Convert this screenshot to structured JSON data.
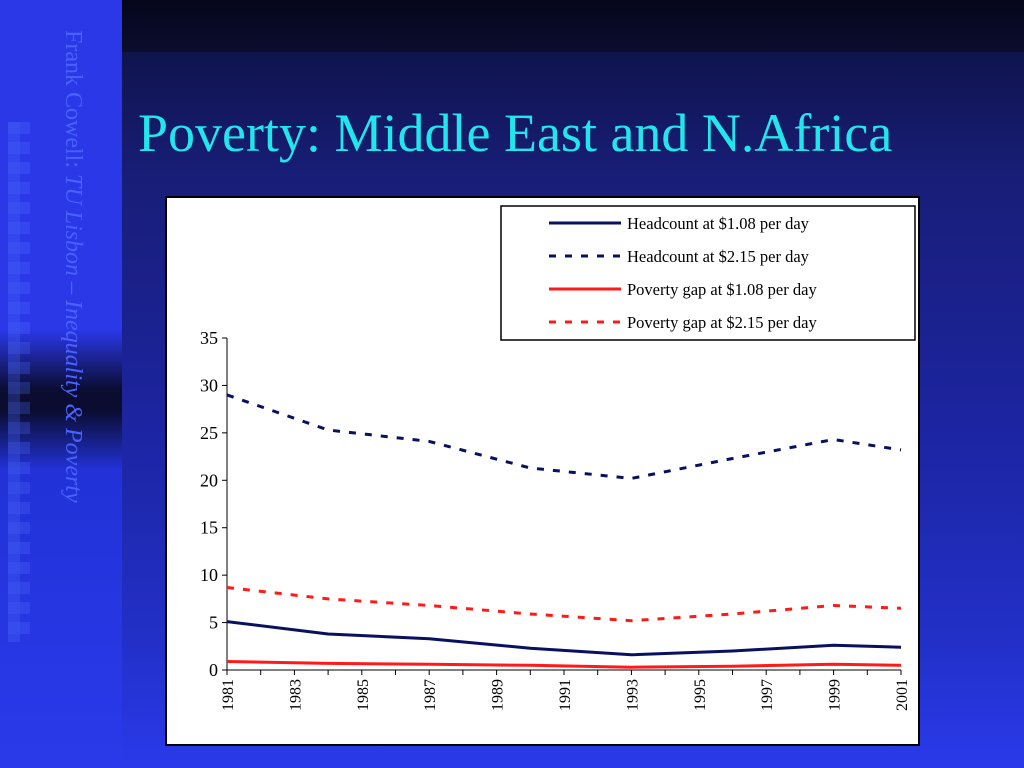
{
  "sidebar": {
    "author": "Frank Cowell: ",
    "course": "TU Lisbon – Inequality & Poverty"
  },
  "slide": {
    "title": "Poverty: Middle East and N.Africa"
  },
  "colors": {
    "navy": "#0a1060",
    "red": "#ff1a1a",
    "title": "#22e6ee"
  },
  "chart_data": {
    "type": "line",
    "title": "",
    "xlabel": "",
    "ylabel": "",
    "ylim": [
      0,
      35
    ],
    "yticks": [
      0,
      5,
      10,
      15,
      20,
      25,
      30,
      35
    ],
    "xlim": [
      1981,
      2001
    ],
    "xticks": [
      "1981",
      "1983",
      "1985",
      "1987",
      "1989",
      "1991",
      "1993",
      "1995",
      "1997",
      "1999",
      "2001"
    ],
    "grid": false,
    "legend": "top-right",
    "series": [
      {
        "name": "Headcount at $1.08 per day",
        "color": "#0a1060",
        "dash": false,
        "x": [
          1981,
          1984,
          1987,
          1990,
          1993,
          1996,
          1999,
          2001
        ],
        "y": [
          5.1,
          3.8,
          3.3,
          2.3,
          1.6,
          2.0,
          2.6,
          2.4
        ]
      },
      {
        "name": "Headcount at $2.15 per day",
        "color": "#0a1060",
        "dash": true,
        "x": [
          1981,
          1984,
          1987,
          1990,
          1993,
          1996,
          1999,
          2001
        ],
        "y": [
          29.0,
          25.3,
          24.1,
          21.3,
          20.2,
          22.3,
          24.3,
          23.2
        ]
      },
      {
        "name": "Poverty gap at $1.08 per day",
        "color": "#ff1a1a",
        "dash": false,
        "x": [
          1981,
          1984,
          1987,
          1990,
          1993,
          1996,
          1999,
          2001
        ],
        "y": [
          0.9,
          0.7,
          0.6,
          0.5,
          0.3,
          0.4,
          0.6,
          0.5
        ]
      },
      {
        "name": "Poverty gap at $2.15 per day",
        "color": "#ff1a1a",
        "dash": true,
        "x": [
          1981,
          1984,
          1987,
          1990,
          1993,
          1996,
          1999,
          2001
        ],
        "y": [
          8.7,
          7.5,
          6.8,
          5.9,
          5.2,
          5.9,
          6.8,
          6.5
        ]
      }
    ]
  }
}
